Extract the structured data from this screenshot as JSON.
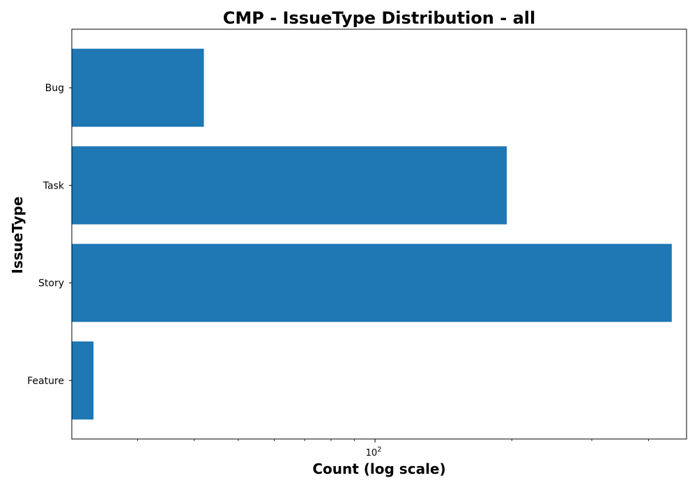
{
  "chart_data": {
    "type": "bar",
    "orientation": "horizontal",
    "title": "CMP - IssueType Distribution - all",
    "xlabel": "Count (log scale)",
    "ylabel": "IssueType",
    "x_scale": "log",
    "xlim": [
      21.5,
      485
    ],
    "x_tick_labels": [
      {
        "value": 100,
        "base": "10",
        "exponent": "2"
      }
    ],
    "categories": [
      "Bug",
      "Task",
      "Story",
      "Feature"
    ],
    "values": [
      42,
      195,
      450,
      24
    ],
    "bar_color": "#1f77b4",
    "grid": false,
    "legend": "none"
  }
}
